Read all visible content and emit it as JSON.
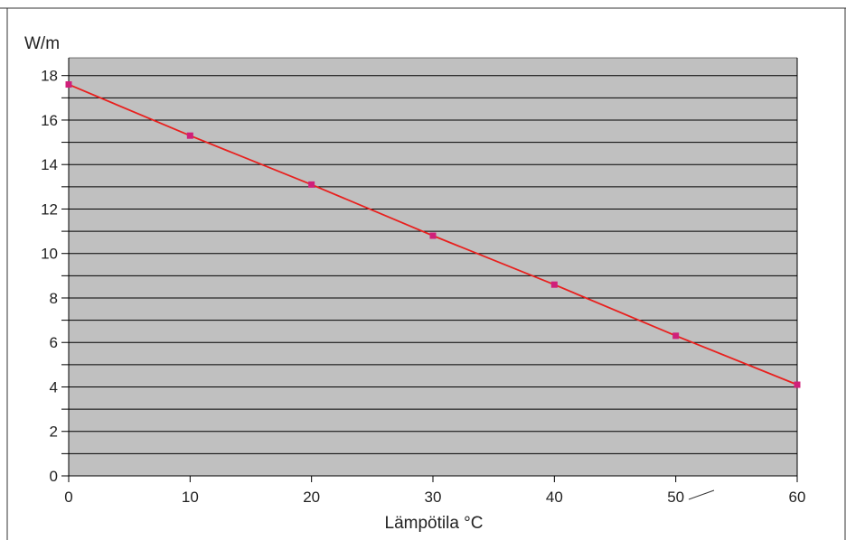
{
  "chart_data": {
    "type": "line",
    "title": "",
    "xlabel": "Lämpötila °C",
    "ylabel": "W/m",
    "xlim": [
      0,
      60
    ],
    "ylim": [
      0,
      18.8
    ],
    "x_ticks": [
      "0",
      "10",
      "20",
      "30",
      "40",
      "50",
      "60"
    ],
    "y_ticks": [
      "0",
      "2",
      "4",
      "6",
      "8",
      "10",
      "12",
      "14",
      "16",
      "18"
    ],
    "grid": true,
    "legend": "none",
    "series": [
      {
        "x": [
          0,
          10,
          20,
          30,
          40,
          50,
          60
        ],
        "values": [
          17.6,
          15.3,
          13.1,
          10.8,
          8.6,
          6.3,
          4.1
        ]
      }
    ],
    "colors": {
      "plot_background": "#c0c0c0",
      "gridline": "#000000",
      "line": "#e8201e",
      "marker": "#d0207a"
    }
  }
}
